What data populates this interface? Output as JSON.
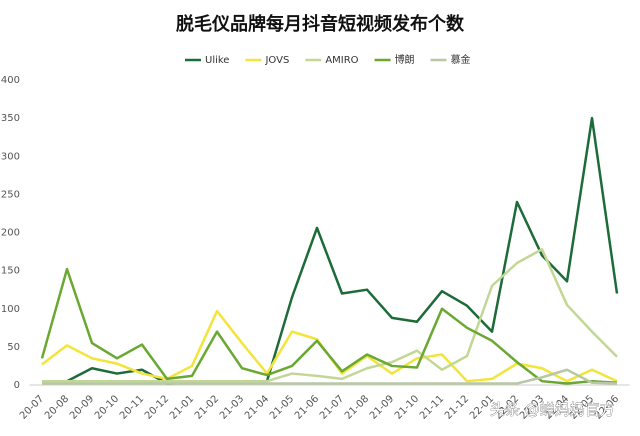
{
  "chart_data": {
    "type": "line",
    "title": "脱毛仪品牌每月抖音短视频发布个数",
    "categories": [
      "20-07",
      "20-08",
      "20-09",
      "20-10",
      "20-11",
      "20-12",
      "21-01",
      "21-02",
      "21-03",
      "21-04",
      "21-05",
      "21-06",
      "21-07",
      "21-08",
      "21-09",
      "21-10",
      "21-11",
      "21-12",
      "22-01",
      "22-02",
      "22-03",
      "22-04",
      "22-05",
      "22-06"
    ],
    "series": [
      {
        "name": "Ulike",
        "color": "#1d6b38",
        "values": [
          4,
          5,
          22,
          15,
          20,
          2,
          3,
          4,
          3,
          5,
          115,
          206,
          120,
          125,
          88,
          83,
          123,
          104,
          70,
          240,
          170,
          136,
          350,
          120
        ]
      },
      {
        "name": "JOVS",
        "color": "#f3e43c",
        "values": [
          27,
          52,
          35,
          28,
          15,
          8,
          25,
          97,
          55,
          15,
          70,
          60,
          15,
          38,
          15,
          35,
          40,
          5,
          8,
          28,
          22,
          5,
          20,
          5
        ]
      },
      {
        "name": "AMIRO",
        "color": "#c3d795",
        "values": [
          5,
          5,
          5,
          5,
          5,
          5,
          5,
          5,
          5,
          5,
          15,
          12,
          8,
          22,
          30,
          45,
          20,
          38,
          130,
          160,
          178,
          105,
          70,
          37
        ]
      },
      {
        "name": "博朗",
        "color": "#6aa832",
        "values": [
          35,
          152,
          55,
          35,
          53,
          8,
          12,
          70,
          22,
          13,
          25,
          58,
          18,
          40,
          25,
          23,
          100,
          75,
          58,
          30,
          5,
          2,
          5,
          3
        ]
      },
      {
        "name": "慕金",
        "color": "#b8c8a6",
        "values": [
          2,
          2,
          2,
          2,
          2,
          2,
          2,
          2,
          2,
          2,
          2,
          2,
          2,
          2,
          2,
          2,
          2,
          2,
          2,
          2,
          10,
          20,
          3,
          2
        ]
      }
    ],
    "ylim": [
      0,
      400
    ],
    "yticks": [
      0,
      50,
      100,
      150,
      200,
      250,
      300,
      350,
      400
    ],
    "grid": false,
    "watermark": "头条 @蝉妈妈官方"
  }
}
